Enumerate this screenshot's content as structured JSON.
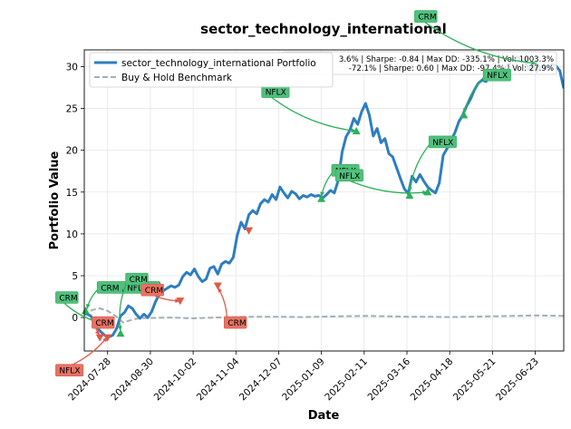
{
  "chart_data": {
    "type": "line",
    "title": "sector_technology_international",
    "xlabel": "Date",
    "ylabel": "Portfolio Value",
    "x_range": [
      "2024-07-10",
      "2025-07-15"
    ],
    "ylim": [
      -4.0,
      32.0
    ],
    "grid": true,
    "legend_position": "top-left",
    "x_ticks": [
      "2024-07-28",
      "2024-08-30",
      "2024-10-02",
      "2024-11-04",
      "2024-12-07",
      "2025-01-09",
      "2025-02-11",
      "2025-03-16",
      "2025-04-18",
      "2025-05-21",
      "2025-06-23"
    ],
    "y_ticks": [
      0,
      5,
      10,
      15,
      20,
      25,
      30
    ],
    "series": [
      {
        "name": "sector_technology_international Portfolio",
        "color": "#2e7ebf",
        "style": "solid",
        "x": [
          "2024-07-10",
          "2024-07-15",
          "2024-07-19",
          "2024-07-22",
          "2024-07-25",
          "2024-07-28",
          "2024-08-01",
          "2024-08-04",
          "2024-08-07",
          "2024-08-10",
          "2024-08-13",
          "2024-08-16",
          "2024-08-19",
          "2024-08-22",
          "2024-08-25",
          "2024-08-28",
          "2024-08-31",
          "2024-09-03",
          "2024-09-06",
          "2024-09-09",
          "2024-09-12",
          "2024-09-15",
          "2024-09-18",
          "2024-09-21",
          "2024-09-24",
          "2024-09-27",
          "2024-09-30",
          "2024-10-03",
          "2024-10-06",
          "2024-10-09",
          "2024-10-12",
          "2024-10-15",
          "2024-10-18",
          "2024-10-21",
          "2024-10-24",
          "2024-10-27",
          "2024-10-30",
          "2024-11-02",
          "2024-11-05",
          "2024-11-08",
          "2024-11-11",
          "2024-11-14",
          "2024-11-17",
          "2024-11-20",
          "2024-11-23",
          "2024-11-26",
          "2024-11-29",
          "2024-12-02",
          "2024-12-05",
          "2024-12-08",
          "2024-12-11",
          "2024-12-14",
          "2024-12-17",
          "2024-12-20",
          "2024-12-23",
          "2024-12-26",
          "2024-12-29",
          "2025-01-01",
          "2025-01-04",
          "2025-01-07",
          "2025-01-10",
          "2025-01-13",
          "2025-01-16",
          "2025-01-19",
          "2025-01-22",
          "2025-01-25",
          "2025-01-28",
          "2025-01-31",
          "2025-02-03",
          "2025-02-06",
          "2025-02-09",
          "2025-02-12",
          "2025-02-15",
          "2025-02-18",
          "2025-02-21",
          "2025-02-24",
          "2025-02-27",
          "2025-03-02",
          "2025-03-05",
          "2025-03-08",
          "2025-03-11",
          "2025-03-14",
          "2025-03-17",
          "2025-03-20",
          "2025-03-23",
          "2025-03-26",
          "2025-03-29",
          "2025-04-01",
          "2025-04-04",
          "2025-04-07",
          "2025-04-10",
          "2025-04-13",
          "2025-04-16",
          "2025-04-19",
          "2025-04-22",
          "2025-04-25",
          "2025-04-28",
          "2025-05-01",
          "2025-05-04",
          "2025-05-07",
          "2025-05-10",
          "2025-05-13",
          "2025-05-16",
          "2025-05-19",
          "2025-05-22",
          "2025-05-25",
          "2025-05-28",
          "2025-05-31",
          "2025-06-03",
          "2025-06-06",
          "2025-06-09",
          "2025-06-12",
          "2025-06-15",
          "2025-06-18",
          "2025-06-21",
          "2025-06-24",
          "2025-06-27",
          "2025-06-30",
          "2025-07-03",
          "2025-07-06",
          "2025-07-09",
          "2025-07-12",
          "2025-07-15"
        ],
        "y": [
          0.6,
          0.2,
          -0.9,
          -1.6,
          -2.0,
          -2.4,
          -2.1,
          -1.3,
          0.2,
          0.6,
          1.4,
          1.1,
          0.4,
          -0.1,
          0.4,
          0.0,
          0.7,
          1.9,
          2.8,
          3.2,
          3.5,
          3.8,
          3.6,
          3.9,
          4.9,
          5.4,
          5.1,
          5.8,
          4.9,
          4.3,
          4.6,
          5.9,
          6.1,
          5.2,
          6.4,
          6.7,
          6.5,
          7.2,
          9.8,
          11.4,
          10.6,
          12.3,
          12.8,
          12.4,
          13.6,
          14.1,
          13.8,
          14.7,
          14.1,
          15.6,
          14.9,
          14.3,
          15.1,
          14.8,
          14.2,
          14.6,
          14.4,
          14.7,
          14.5,
          14.6,
          14.3,
          14.7,
          15.2,
          14.9,
          16.4,
          19.8,
          21.6,
          22.4,
          23.8,
          23.1,
          24.6,
          25.6,
          24.2,
          21.7,
          22.6,
          20.9,
          21.4,
          19.6,
          19.2,
          17.9,
          16.6,
          15.4,
          14.8,
          16.9,
          16.2,
          17.1,
          16.3,
          15.6,
          15.2,
          14.9,
          16.1,
          19.4,
          20.2,
          21.2,
          22.1,
          23.4,
          24.2,
          25.3,
          26.1,
          27.2,
          28.0,
          28.4,
          28.2,
          28.9,
          29.1,
          28.7,
          29.6,
          29.9,
          30.4,
          30.9,
          31.2,
          30.6,
          30.8,
          29.7,
          30.1,
          29.4,
          29.9,
          30.2,
          29.6,
          30.3,
          30.1,
          29.5,
          27.4
        ]
      },
      {
        "name": "Buy & Hold Benchmark",
        "color": "#a3aeb5",
        "style": "dashed",
        "x": [
          "2024-07-10",
          "2024-07-16",
          "2024-07-22",
          "2024-07-28",
          "2024-08-03",
          "2024-08-09",
          "2024-08-15",
          "2024-08-21",
          "2024-08-30",
          "2024-09-15",
          "2024-10-02",
          "2024-10-20",
          "2024-11-04",
          "2024-11-20",
          "2024-12-07",
          "2024-12-25",
          "2025-01-09",
          "2025-01-25",
          "2025-02-11",
          "2025-02-28",
          "2025-03-16",
          "2025-04-02",
          "2025-04-18",
          "2025-05-05",
          "2025-05-21",
          "2025-06-06",
          "2025-06-23",
          "2025-07-15"
        ],
        "y": [
          0.2,
          0.9,
          1.1,
          0.8,
          0.2,
          -0.6,
          -0.3,
          -0.1,
          -0.05,
          0.0,
          -0.1,
          0.0,
          0.05,
          0.1,
          0.1,
          0.05,
          0.1,
          0.15,
          0.2,
          0.15,
          0.1,
          0.1,
          0.05,
          0.1,
          0.15,
          0.2,
          0.25,
          0.2
        ]
      }
    ],
    "markers": [
      {
        "kind": "buy",
        "x": "2024-07-11",
        "y": 0.8
      },
      {
        "kind": "buy",
        "x": "2024-08-07",
        "y": -1.9
      },
      {
        "kind": "sell",
        "x": "2024-07-22",
        "y": -2.4
      },
      {
        "kind": "sell",
        "x": "2024-07-28",
        "y": -2.4
      },
      {
        "kind": "sell",
        "x": "2024-09-22",
        "y": 2.0
      },
      {
        "kind": "sell",
        "x": "2024-10-21",
        "y": 3.8
      },
      {
        "kind": "sell",
        "x": "2024-11-14",
        "y": 10.4
      },
      {
        "kind": "buy",
        "x": "2025-01-09",
        "y": 14.2
      },
      {
        "kind": "buy",
        "x": "2025-02-05",
        "y": 22.3
      },
      {
        "kind": "buy",
        "x": "2025-03-18",
        "y": 14.6
      },
      {
        "kind": "buy",
        "x": "2025-04-01",
        "y": 15.0
      },
      {
        "kind": "buy",
        "x": "2025-04-29",
        "y": 24.2
      },
      {
        "kind": "buy",
        "x": "2025-06-24",
        "y": 30.2
      }
    ],
    "annotations": [
      {
        "text": "CRM",
        "kind": "buy",
        "x": "2024-06-20",
        "y": 2.4,
        "target_x": "2024-07-26",
        "target_y": -0.8
      },
      {
        "text": "NFLX",
        "kind": "sell",
        "x": "2024-06-20",
        "y": -6.3,
        "target_x": "2024-07-28",
        "target_y": -2.3
      },
      {
        "text": "CRM",
        "kind": "sell",
        "x": "2024-07-18",
        "y": -0.6,
        "target_x": "2024-07-22",
        "target_y": -2.1
      },
      {
        "text": "CRM  , NFLX",
        "kind": "buy",
        "x": "2024-07-22",
        "y": 3.6,
        "target_x": "2024-07-12",
        "target_y": 1.0
      },
      {
        "text": "CRM",
        "kind": "buy",
        "x": "2024-08-13",
        "y": 4.6,
        "target_x": "2024-08-07",
        "target_y": -1.6
      },
      {
        "text": "CRM",
        "kind": "sell",
        "x": "2024-08-25",
        "y": 3.3,
        "target_x": "2024-09-22",
        "target_y": 2.0
      },
      {
        "text": "CRM",
        "kind": "sell",
        "x": "2024-10-28",
        "y": -0.6,
        "target_x": "2024-10-21",
        "target_y": 3.6
      },
      {
        "text": "NFLX",
        "kind": "buy",
        "x": "2024-11-26",
        "y": 27.0,
        "target_x": "2025-02-05",
        "target_y": 22.3
      },
      {
        "text": "NFLX",
        "kind": "buy",
        "x": "2025-01-19",
        "y": 17.6,
        "target_x": "2025-01-09",
        "target_y": 14.4
      },
      {
        "text": "NFLX",
        "kind": "buy",
        "x": "2025-01-22",
        "y": 17.0,
        "target_x": "2025-04-01",
        "target_y": 15.0
      },
      {
        "text": "NFLX",
        "kind": "buy",
        "x": "2025-04-04",
        "y": 21.0,
        "target_x": "2025-03-18",
        "target_y": 15.0
      },
      {
        "text": "NFLX",
        "kind": "buy",
        "x": "2025-05-16",
        "y": 29.0,
        "target_x": "2025-04-29",
        "target_y": 24.4
      },
      {
        "text": "CRM",
        "kind": "buy",
        "x": "2025-03-24",
        "y": 36.0,
        "target_x": "2025-06-24",
        "target_y": 30.4
      }
    ],
    "stats_lines": [
      "3.6% | Sharpe: -0.84 | Max DD: -335.1% | Vol: 1003.3%",
      "-72.1% | Sharpe: 0.60 | Max DD: -97.4% | Vol: 27.9%"
    ],
    "colors": {
      "buy": "#2db05b",
      "sell": "#e05845",
      "buy_label": "#52bf7d",
      "sell_label": "#e57366",
      "axis": "#000000",
      "grid": "#e6e6e6"
    }
  }
}
